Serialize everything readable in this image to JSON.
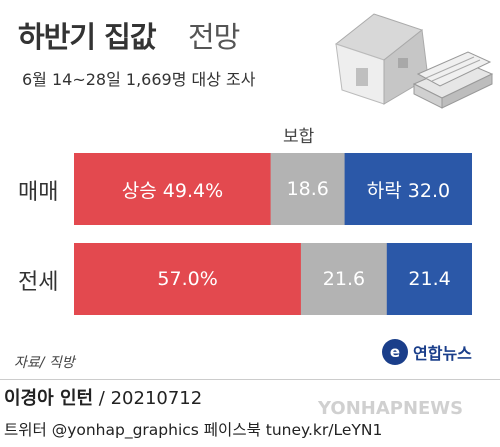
{
  "header": {
    "title_main": "하반기 집값",
    "title_sub": "전망",
    "subtitle": "6월 14~28일 1,669명 대상 조사"
  },
  "colors": {
    "up": "#e3494f",
    "mid": "#b3b3b3",
    "down": "#2b58a8"
  },
  "chart_data": {
    "type": "bar",
    "orientation": "horizontal",
    "stacked": true,
    "normalized": true,
    "categories": [
      "매매",
      "전세"
    ],
    "series": [
      {
        "name": "상승",
        "values": [
          49.4,
          57.0
        ]
      },
      {
        "name": "보합",
        "values": [
          18.6,
          21.6
        ]
      },
      {
        "name": "하락",
        "values": [
          32.0,
          21.4
        ]
      }
    ],
    "data_labels": [
      [
        "상승 49.4%",
        "18.6",
        "하락 32.0"
      ],
      [
        "57.0%",
        "21.6",
        "21.4"
      ]
    ],
    "legend_label_mid": "보합",
    "xlim": [
      0,
      100
    ]
  },
  "footer": {
    "source": "자료/ 직방",
    "logo_text": "연합뉴스",
    "logo_mark": "e",
    "credit_name": "이경아 인턴",
    "credit_date": " / 20210712",
    "social": "트위터 @yonhap_graphics  페이스북 tuney.kr/LeYN1",
    "watermark": "YONHAPNEWS"
  }
}
